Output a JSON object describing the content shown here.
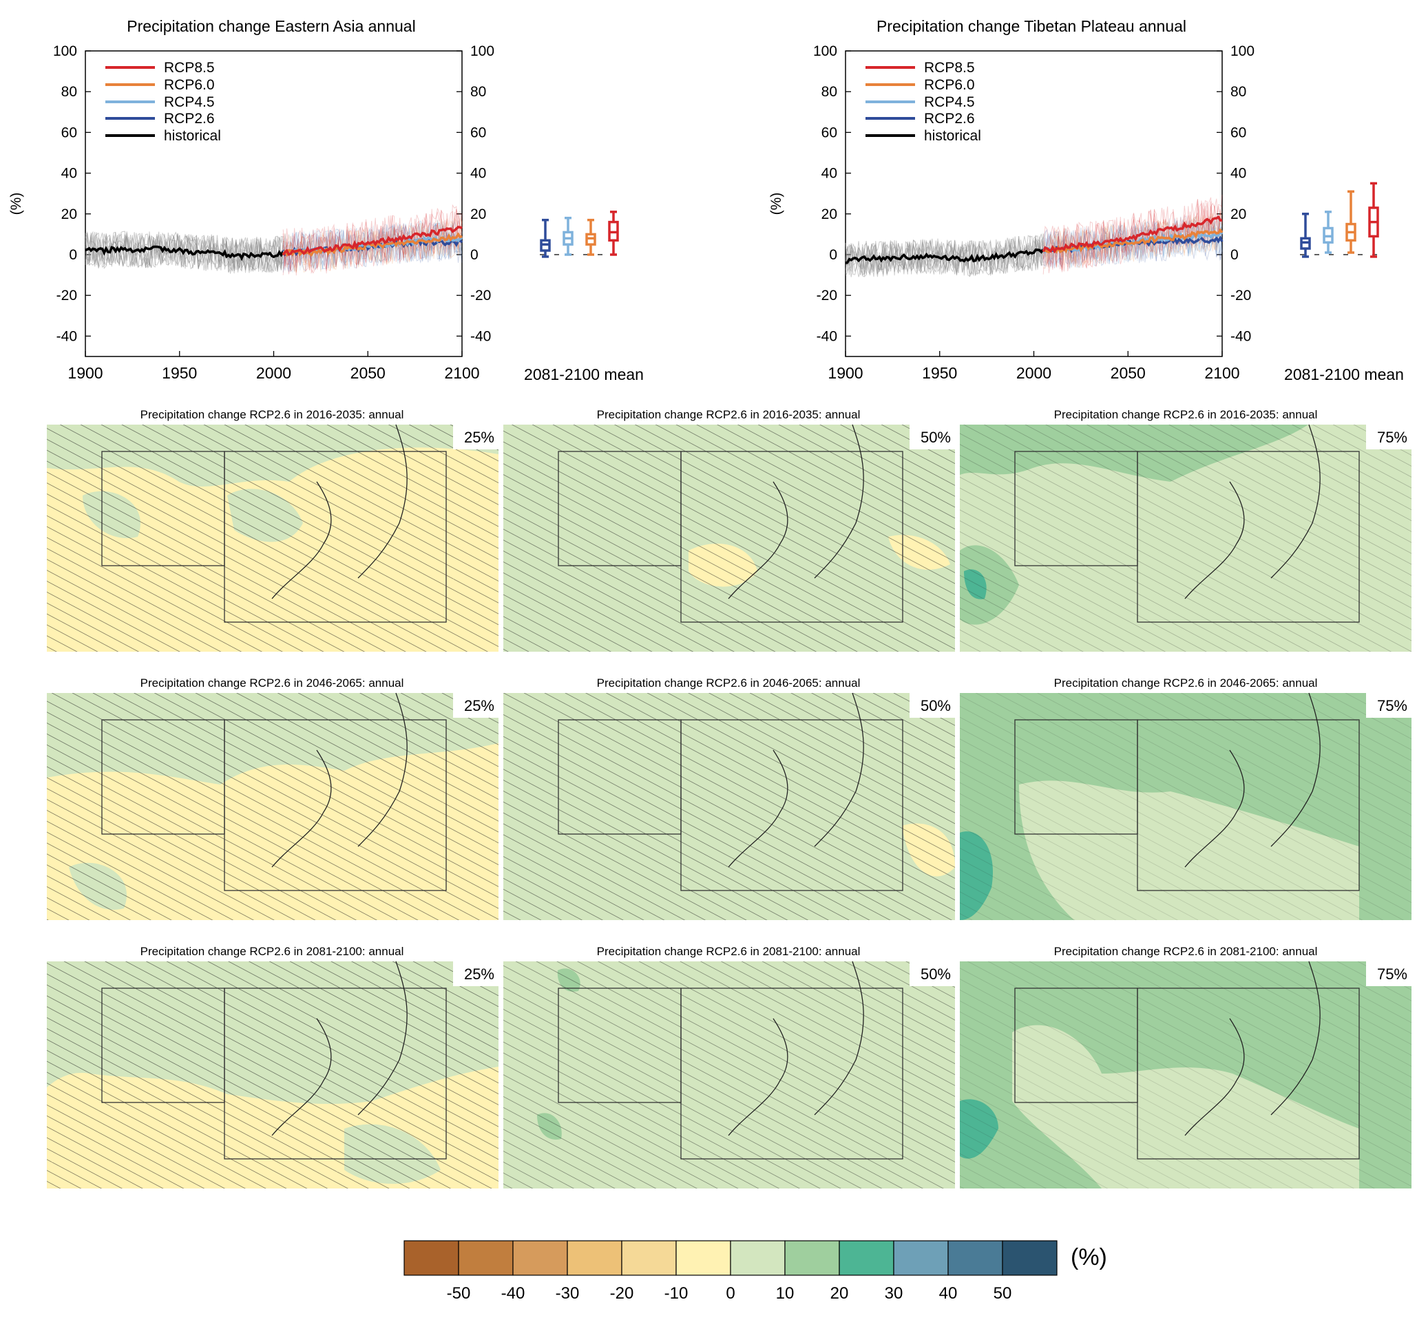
{
  "colors": {
    "rcp85": "#d7262b",
    "rcp60": "#e8823a",
    "rcp45": "#7fb2dc",
    "rcp26": "#2f4c9a",
    "historical": "#000000",
    "hist_spread": "#8c8c8c"
  },
  "colorbar": {
    "unit": "(%)",
    "tick_labels": [
      "-50",
      "-40",
      "-30",
      "-20",
      "-10",
      "0",
      "10",
      "20",
      "30",
      "40",
      "50"
    ],
    "colors": [
      "#a9622b",
      "#c17e3e",
      "#d69b5c",
      "#edc177",
      "#f5d997",
      "#fff2b3",
      "#d3e6bf",
      "#9fcf9e",
      "#4db594",
      "#6ea0b7",
      "#4a7b96",
      "#2b5470"
    ]
  },
  "chart_data": [
    {
      "type": "line",
      "title": "Precipitation change Eastern Asia annual",
      "ylabel": "(%)",
      "xlim": [
        1900,
        2100
      ],
      "ylim": [
        -50,
        100
      ],
      "xticks": [
        1900,
        1950,
        2000,
        2050,
        2100
      ],
      "yticks": [
        -40,
        -20,
        0,
        20,
        40,
        60,
        80,
        100
      ],
      "legend": [
        "RCP8.5",
        "RCP6.0",
        "RCP4.5",
        "RCP2.6",
        "historical"
      ],
      "legend_position": "top-left",
      "series": [
        {
          "name": "historical",
          "x": [
            1900,
            1910,
            1920,
            1930,
            1940,
            1950,
            1960,
            1970,
            1980,
            1990,
            2000,
            2005
          ],
          "values": [
            3,
            2,
            3,
            2,
            3,
            2,
            1,
            1,
            -1,
            0,
            0,
            1
          ]
        },
        {
          "name": "RCP2.6",
          "x": [
            2005,
            2020,
            2040,
            2060,
            2080,
            2100
          ],
          "values": [
            1,
            2,
            3,
            5,
            6,
            6
          ]
        },
        {
          "name": "RCP4.5",
          "x": [
            2005,
            2020,
            2040,
            2060,
            2080,
            2100
          ],
          "values": [
            1,
            2,
            3,
            5,
            7,
            8
          ]
        },
        {
          "name": "RCP6.0",
          "x": [
            2005,
            2020,
            2040,
            2060,
            2080,
            2100
          ],
          "values": [
            1,
            1,
            3,
            5,
            7,
            9
          ]
        },
        {
          "name": "RCP8.5",
          "x": [
            2005,
            2020,
            2040,
            2060,
            2080,
            2100
          ],
          "values": [
            1,
            2,
            4,
            7,
            10,
            13
          ]
        }
      ],
      "boxplot_label": "2081-2100 mean",
      "boxplots": [
        {
          "name": "RCP2.6",
          "min": -1,
          "q1": 2,
          "median": 5,
          "q3": 7,
          "max": 17
        },
        {
          "name": "RCP4.5",
          "min": 0,
          "q1": 5,
          "median": 8,
          "q3": 11,
          "max": 18
        },
        {
          "name": "RCP6.0",
          "min": 0,
          "q1": 5,
          "median": 8,
          "q3": 10,
          "max": 17
        },
        {
          "name": "RCP8.5",
          "min": 0,
          "q1": 7,
          "median": 11,
          "q3": 16,
          "max": 21
        }
      ]
    },
    {
      "type": "line",
      "title": "Precipitation change Tibetan Plateau annual",
      "ylabel": "(%)",
      "xlim": [
        1900,
        2100
      ],
      "ylim": [
        -50,
        100
      ],
      "xticks": [
        1900,
        1950,
        2000,
        2050,
        2100
      ],
      "yticks": [
        -40,
        -20,
        0,
        20,
        40,
        60,
        80,
        100
      ],
      "legend": [
        "RCP8.5",
        "RCP6.0",
        "RCP4.5",
        "RCP2.6",
        "historical"
      ],
      "legend_position": "top-left",
      "series": [
        {
          "name": "historical",
          "x": [
            1900,
            1910,
            1920,
            1930,
            1940,
            1950,
            1960,
            1970,
            1980,
            1990,
            2000,
            2005
          ],
          "values": [
            -3,
            -2,
            -2,
            -1,
            -1,
            -1,
            -2,
            -2,
            -1,
            0,
            1,
            2
          ]
        },
        {
          "name": "RCP2.6",
          "x": [
            2005,
            2020,
            2040,
            2060,
            2080,
            2100
          ],
          "values": [
            2,
            3,
            5,
            6,
            7,
            7
          ]
        },
        {
          "name": "RCP4.5",
          "x": [
            2005,
            2020,
            2040,
            2060,
            2080,
            2100
          ],
          "values": [
            2,
            3,
            5,
            7,
            9,
            10
          ]
        },
        {
          "name": "RCP6.0",
          "x": [
            2005,
            2020,
            2040,
            2060,
            2080,
            2100
          ],
          "values": [
            2,
            3,
            5,
            7,
            9,
            12
          ]
        },
        {
          "name": "RCP8.5",
          "x": [
            2005,
            2020,
            2040,
            2060,
            2080,
            2100
          ],
          "values": [
            2,
            4,
            6,
            10,
            14,
            18
          ]
        }
      ],
      "boxplot_label": "2081-2100 mean",
      "boxplots": [
        {
          "name": "RCP2.6",
          "min": -1,
          "q1": 3,
          "median": 6,
          "q3": 8,
          "max": 20
        },
        {
          "name": "RCP4.5",
          "min": 1,
          "q1": 6,
          "median": 9,
          "q3": 13,
          "max": 21
        },
        {
          "name": "RCP6.0",
          "min": 1,
          "q1": 7,
          "median": 11,
          "q3": 15,
          "max": 31
        },
        {
          "name": "RCP8.5",
          "min": -1,
          "q1": 9,
          "median": 16,
          "q3": 23,
          "max": 35
        }
      ]
    },
    {
      "type": "heatmap",
      "rows": [
        {
          "title": "Precipitation change RCP2.6 in 2016-2035: annual"
        },
        {
          "title": "Precipitation change RCP2.6 in 2046-2065: annual"
        },
        {
          "title": "Precipitation change RCP2.6 in 2081-2100: annual"
        }
      ],
      "percentiles": [
        "25%",
        "50%",
        "75%"
      ]
    }
  ]
}
